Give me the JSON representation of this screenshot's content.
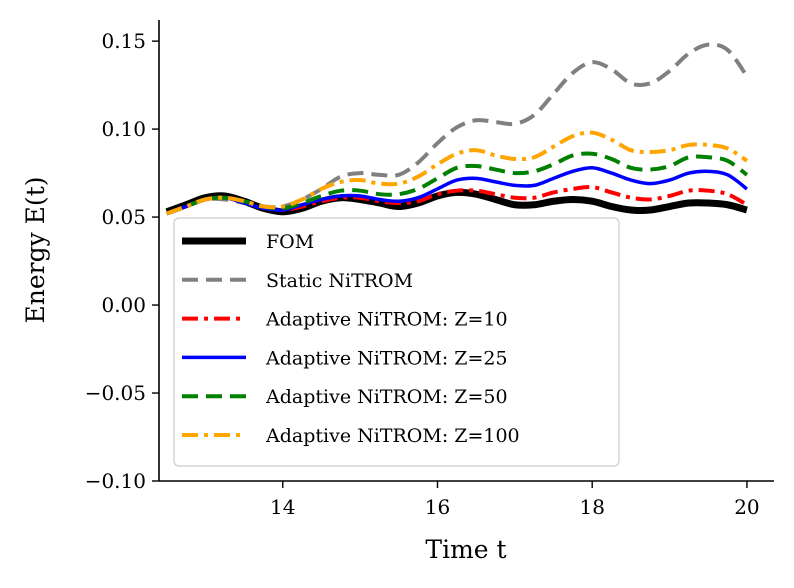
{
  "chart_data": {
    "type": "line",
    "title": "",
    "xlabel": "Time t",
    "ylabel": "Energy E(t)",
    "xlim": [
      12.4,
      20.35
    ],
    "ylim": [
      -0.1,
      0.162
    ],
    "xticks": [
      14,
      16,
      18,
      20
    ],
    "xtick_labels": [
      "14",
      "16",
      "18",
      "20"
    ],
    "yticks": [
      -0.1,
      -0.05,
      0.0,
      0.05,
      0.1,
      0.15
    ],
    "ytick_labels": [
      "−0.10",
      "−0.05",
      "0.00",
      "0.05",
      "0.10",
      "0.15"
    ],
    "grid": false,
    "legend_position": "lower-left",
    "x": [
      12.5,
      12.75,
      13.0,
      13.25,
      13.5,
      13.75,
      14.0,
      14.25,
      14.5,
      14.75,
      15.0,
      15.25,
      15.5,
      15.75,
      16.0,
      16.25,
      16.5,
      16.75,
      17.0,
      17.25,
      17.5,
      17.75,
      18.0,
      18.25,
      18.5,
      18.75,
      19.0,
      19.25,
      19.5,
      19.75,
      20.0
    ],
    "series": [
      {
        "name": "FOM",
        "color": "#000000",
        "style": "solid-thick",
        "values": [
          0.053,
          0.057,
          0.061,
          0.062,
          0.059,
          0.055,
          0.053,
          0.055,
          0.059,
          0.061,
          0.06,
          0.058,
          0.056,
          0.058,
          0.062,
          0.064,
          0.063,
          0.06,
          0.057,
          0.057,
          0.059,
          0.06,
          0.059,
          0.056,
          0.054,
          0.054,
          0.056,
          0.058,
          0.058,
          0.057,
          0.054
        ]
      },
      {
        "name": "Static NiTROM",
        "color": "#808080",
        "style": "dashed",
        "values": [
          0.052,
          0.056,
          0.06,
          0.06,
          0.058,
          0.056,
          0.056,
          0.06,
          0.066,
          0.073,
          0.075,
          0.074,
          0.074,
          0.081,
          0.092,
          0.101,
          0.105,
          0.104,
          0.103,
          0.108,
          0.12,
          0.132,
          0.138,
          0.134,
          0.126,
          0.126,
          0.133,
          0.143,
          0.148,
          0.145,
          0.13
        ]
      },
      {
        "name": "Adaptive NiTROM: Z=10",
        "color": "#ff0000",
        "style": "dashdot",
        "values": [
          0.052,
          0.056,
          0.06,
          0.061,
          0.059,
          0.056,
          0.054,
          0.056,
          0.059,
          0.061,
          0.061,
          0.059,
          0.058,
          0.059,
          0.063,
          0.065,
          0.065,
          0.063,
          0.061,
          0.061,
          0.064,
          0.066,
          0.067,
          0.064,
          0.061,
          0.06,
          0.062,
          0.065,
          0.065,
          0.063,
          0.057
        ]
      },
      {
        "name": "Adaptive NiTROM: Z=25",
        "color": "#0000ff",
        "style": "solid",
        "values": [
          0.052,
          0.056,
          0.06,
          0.061,
          0.058,
          0.055,
          0.054,
          0.057,
          0.06,
          0.062,
          0.062,
          0.06,
          0.059,
          0.061,
          0.066,
          0.071,
          0.072,
          0.07,
          0.068,
          0.068,
          0.072,
          0.076,
          0.078,
          0.075,
          0.071,
          0.069,
          0.071,
          0.075,
          0.076,
          0.074,
          0.066
        ]
      },
      {
        "name": "Adaptive NiTROM: Z=50",
        "color": "#008000",
        "style": "dashed",
        "values": [
          0.052,
          0.056,
          0.06,
          0.061,
          0.059,
          0.056,
          0.055,
          0.058,
          0.062,
          0.065,
          0.065,
          0.063,
          0.063,
          0.066,
          0.072,
          0.078,
          0.079,
          0.077,
          0.075,
          0.076,
          0.08,
          0.085,
          0.086,
          0.083,
          0.078,
          0.077,
          0.079,
          0.084,
          0.084,
          0.082,
          0.074
        ]
      },
      {
        "name": "Adaptive NiTROM: Z=100",
        "color": "#ffa500",
        "style": "dashdot",
        "values": [
          0.052,
          0.056,
          0.06,
          0.061,
          0.059,
          0.056,
          0.056,
          0.06,
          0.066,
          0.07,
          0.071,
          0.069,
          0.069,
          0.073,
          0.08,
          0.086,
          0.088,
          0.085,
          0.083,
          0.084,
          0.09,
          0.096,
          0.098,
          0.094,
          0.088,
          0.087,
          0.088,
          0.091,
          0.091,
          0.089,
          0.082
        ]
      }
    ]
  }
}
